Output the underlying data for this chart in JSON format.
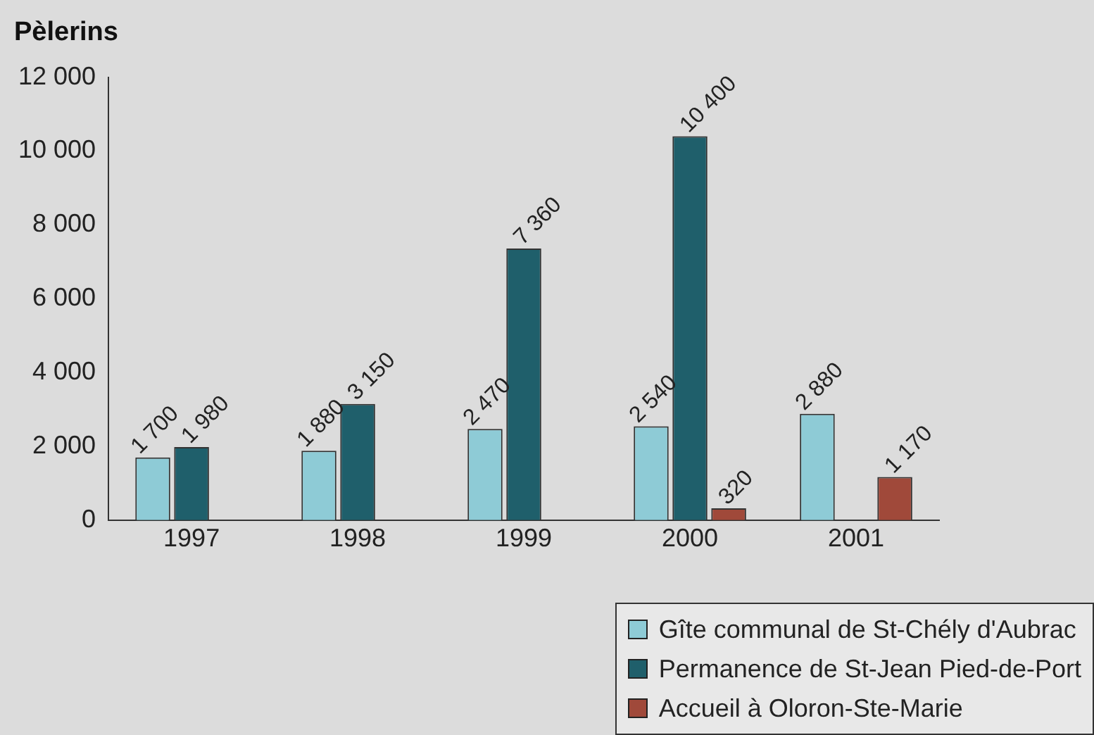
{
  "chart_data": {
    "type": "bar",
    "ylabel": "Pèlerins",
    "categories": [
      "1997",
      "1998",
      "1999",
      "2000",
      "2001"
    ],
    "series": [
      {
        "name": "Gîte communal de St-Chély d'Aubrac",
        "color": "#8ecbd6",
        "values": [
          1700,
          1880,
          2470,
          2540,
          2880
        ],
        "value_labels": [
          "1 700",
          "1 880",
          "2 470",
          "2 540",
          "2 880"
        ]
      },
      {
        "name": "Permanence de St-Jean Pied-de-Port",
        "color": "#1f5f6b",
        "values": [
          1980,
          3150,
          7360,
          10400,
          null
        ],
        "value_labels": [
          "1 980",
          "3 150",
          "7 360",
          "10 400",
          null
        ]
      },
      {
        "name": "Accueil à Oloron-Ste-Marie",
        "color": "#a0493a",
        "values": [
          null,
          null,
          null,
          320,
          1170
        ],
        "value_labels": [
          null,
          null,
          null,
          "320",
          "1 170"
        ]
      }
    ],
    "ylim": [
      0,
      12000
    ],
    "yticks": [
      {
        "value": 0,
        "label": "0"
      },
      {
        "value": 2000,
        "label": "2 000"
      },
      {
        "value": 4000,
        "label": "4 000"
      },
      {
        "value": 6000,
        "label": "6 000"
      },
      {
        "value": 8000,
        "label": "8 000"
      },
      {
        "value": 10000,
        "label": "10 000"
      },
      {
        "value": 12000,
        "label": "12 000"
      }
    ],
    "grid": false,
    "legend": "bottom right"
  }
}
